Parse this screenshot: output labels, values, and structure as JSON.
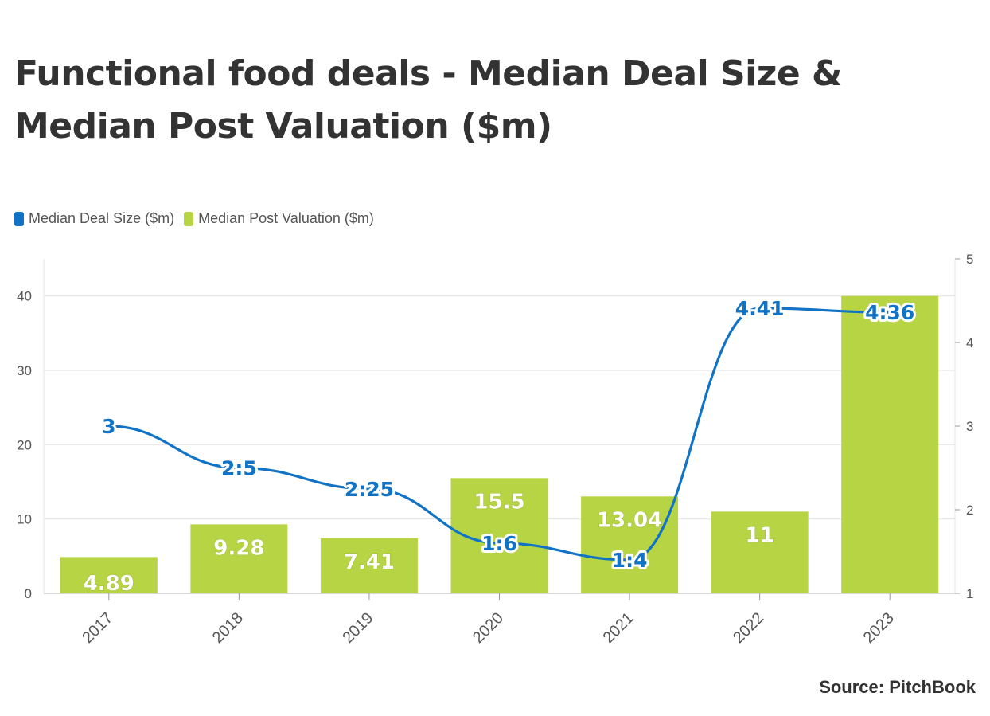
{
  "title": "Functional food deals - Median Deal Size & Median Post Valuation ($m)",
  "source": "Source: PitchBook",
  "colors": {
    "line": "#1173c5",
    "bar": "#b7d445",
    "grid": "#e6e6e6",
    "axis_text": "#555555"
  },
  "chart_data": {
    "type": "bar",
    "categories": [
      "2017",
      "2018",
      "2019",
      "2020",
      "2021",
      "2022",
      "2023"
    ],
    "series": [
      {
        "name": "Median Post Valuation ($m)",
        "type": "bar",
        "axis": "left",
        "values": [
          4.89,
          9.28,
          7.41,
          15.5,
          13.04,
          11,
          40
        ],
        "labels": [
          "4.89",
          "9.28",
          "7.41",
          "15.5",
          "13.04",
          "11",
          ""
        ]
      },
      {
        "name": "Median Deal Size ($m)",
        "type": "line",
        "axis": "right",
        "values": [
          3,
          2.5,
          2.25,
          1.6,
          1.4,
          4.41,
          4.36
        ],
        "labels": [
          "3",
          "2:5",
          "2:25",
          "1:6",
          "1:4",
          "4.41",
          "4:36"
        ]
      }
    ],
    "y_left": {
      "lim": [
        0,
        45
      ],
      "ticks": [
        "0",
        "10",
        "20",
        "30",
        "40"
      ]
    },
    "y_right": {
      "lim": [
        1,
        5
      ],
      "ticks": [
        "1",
        "2",
        "3",
        "4",
        "5"
      ]
    },
    "legend_position": "top-left",
    "grid": true
  }
}
